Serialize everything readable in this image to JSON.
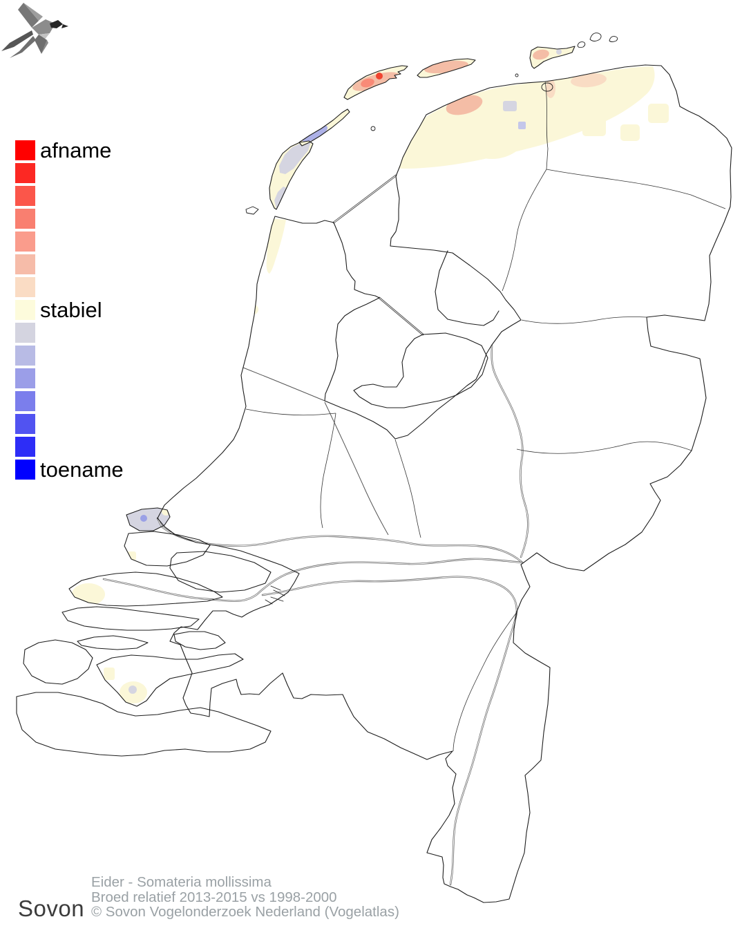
{
  "legend": {
    "label_afname": "afname",
    "label_stabiel": "stabiel",
    "label_toename": "toename",
    "colors": [
      "#ff0000",
      "#fc2823",
      "#fb564a",
      "#f97f70",
      "#fa9c8c",
      "#f6bca9",
      "#fadcc4",
      "#fdfbdc",
      "#d4d4e0",
      "#b8bbe5",
      "#9b9ee8",
      "#7b7eec",
      "#5153f1",
      "#2d2df7",
      "#0000ff"
    ]
  },
  "map": {
    "country": "Nederland",
    "patch_colors": {
      "stabiel": "#fbf7d8",
      "afname1": "#f9dcc4",
      "afname2": "#f4bda6",
      "afname3": "#f98a77",
      "afname4": "#f04430",
      "neutraal": "#d5d5e1",
      "toename1": "#c4c7ea",
      "toename2": "#adb1e7",
      "toename3": "#9aa0e6"
    },
    "line_colors": {
      "coast": "#1c1c1c",
      "border": "#333333",
      "river": "#555555"
    }
  },
  "footer": {
    "logo_text": "Sovon",
    "species_line": "Eider - Somateria mollissima",
    "metric_line": "Broed relatief 2013-2015 vs 1998-2000",
    "copyright_line": "© Sovon Vogelonderzoek Nederland (Vogelatlas)"
  }
}
